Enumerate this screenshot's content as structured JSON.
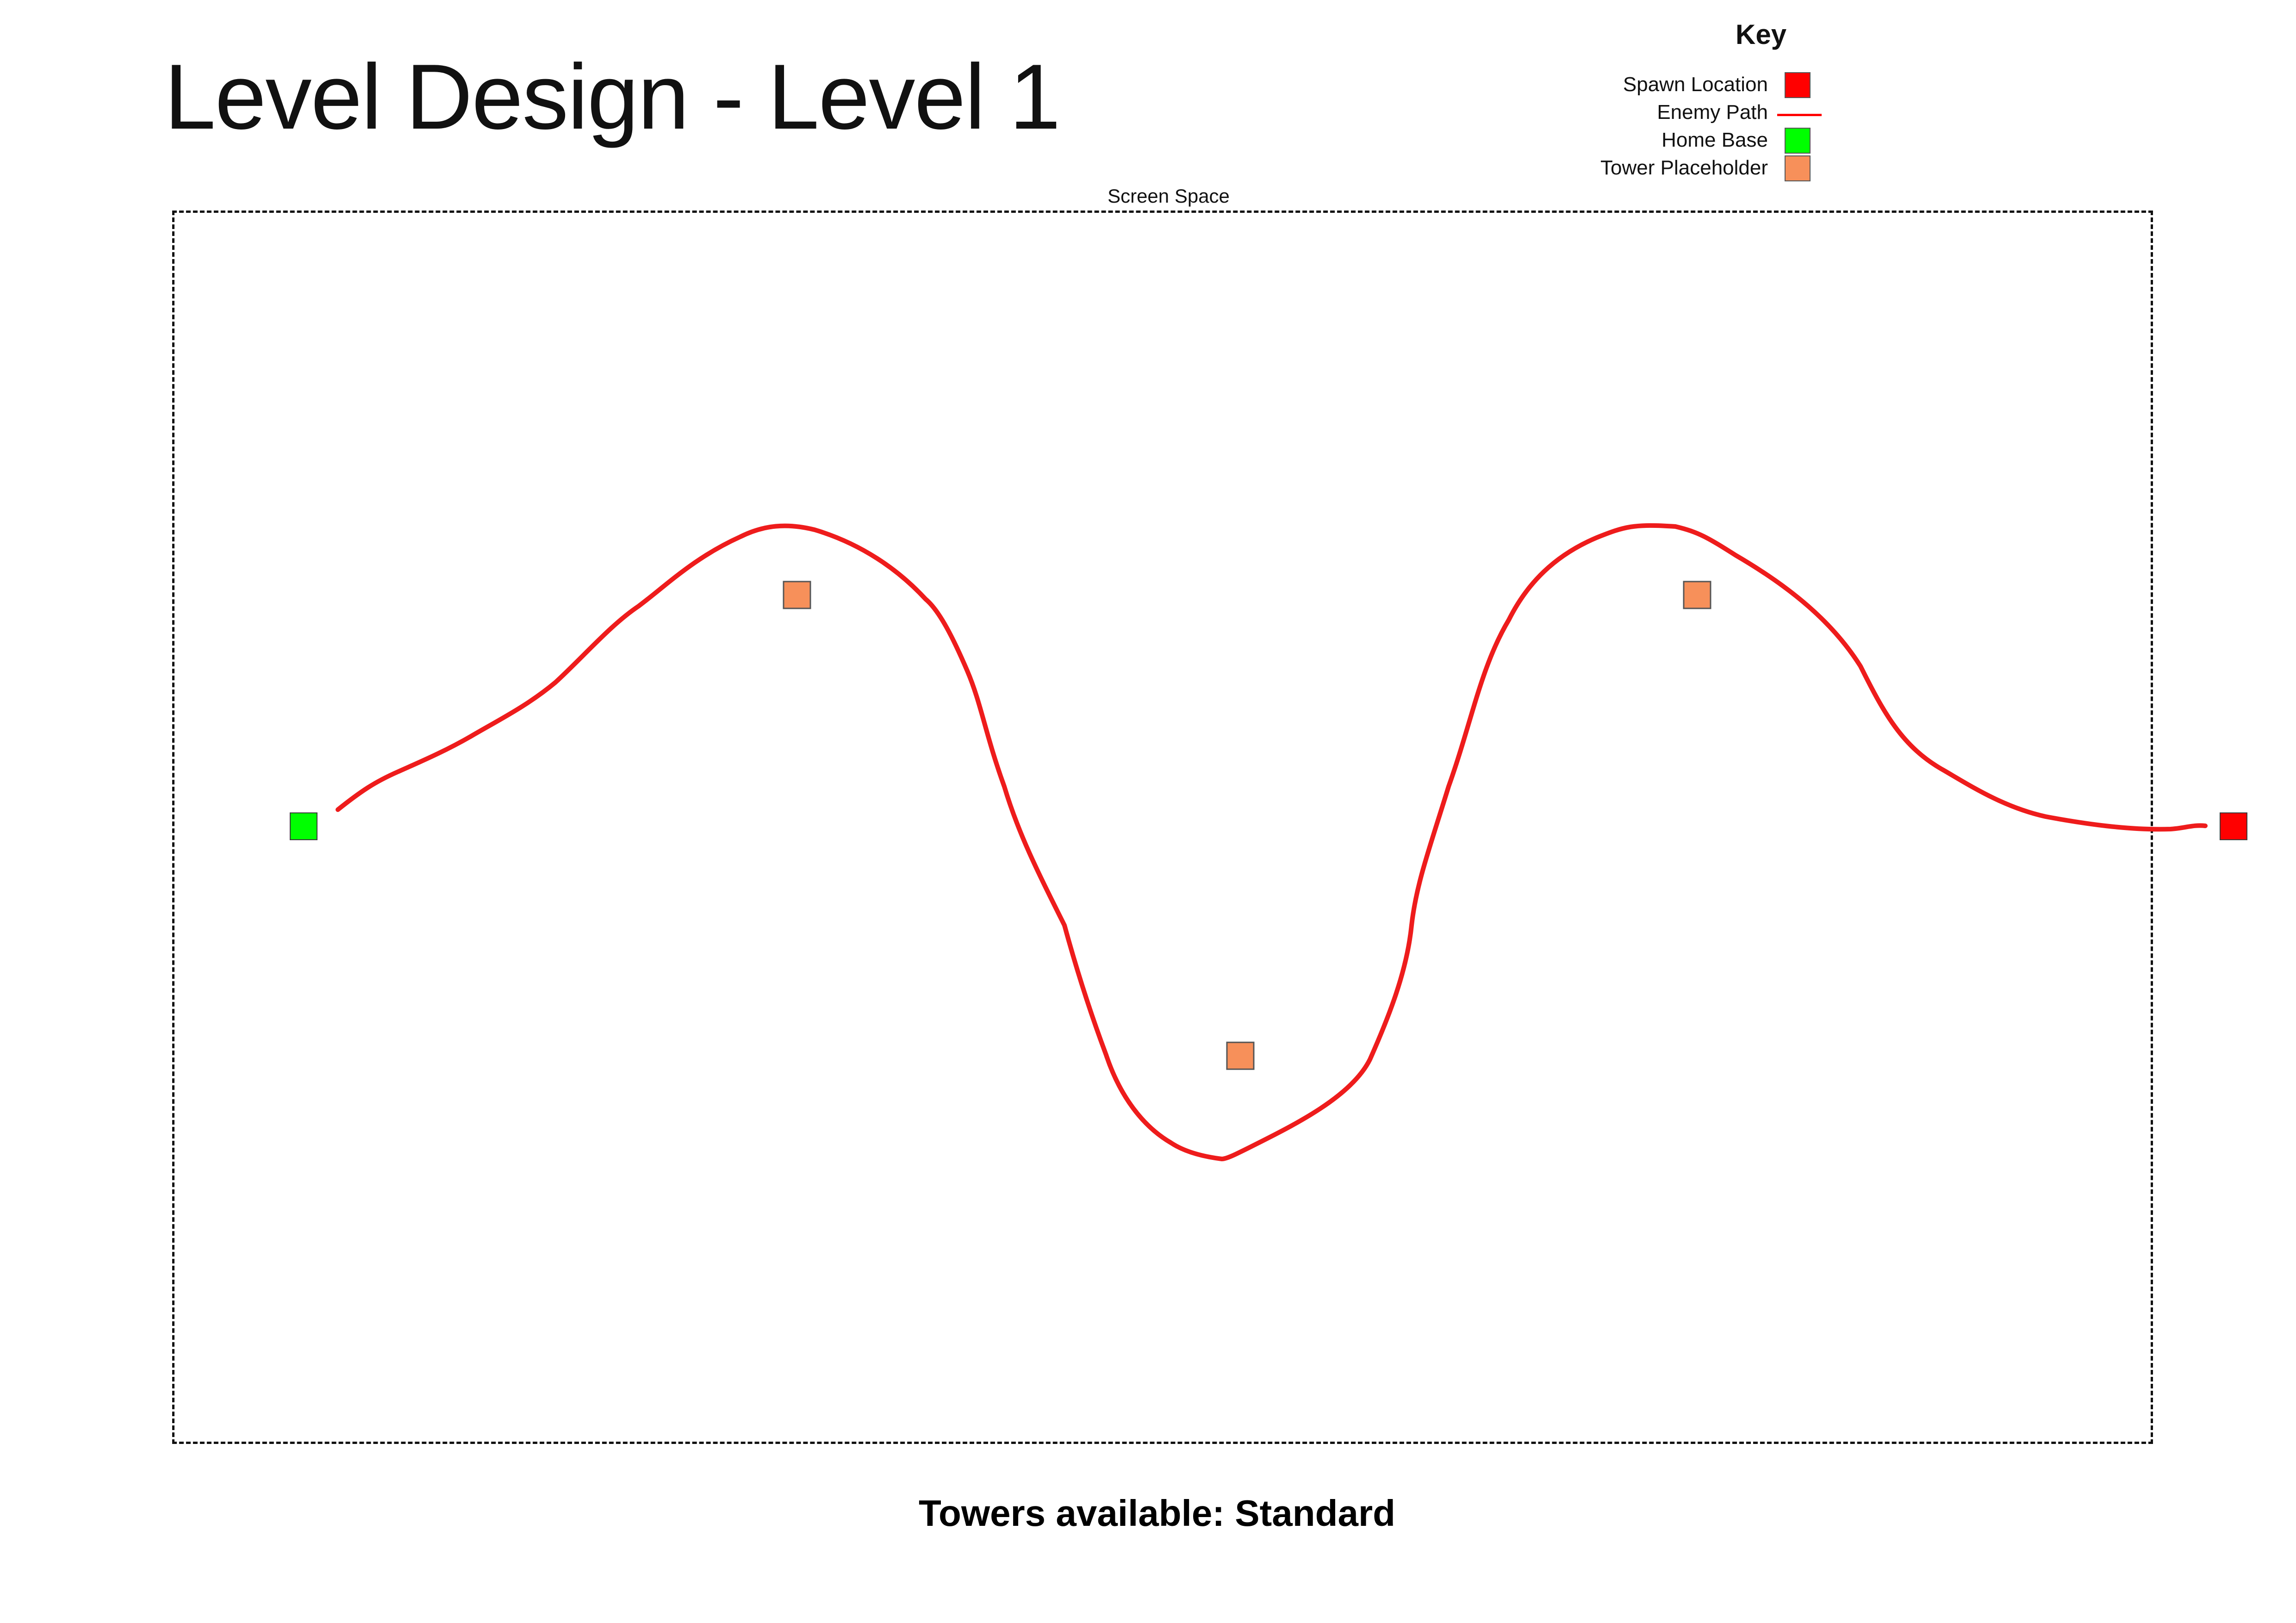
{
  "title": "Level Design - Level 1",
  "key": {
    "heading": "Key",
    "items": [
      {
        "label": "Spawn Location",
        "type": "square",
        "color": "#ff0000"
      },
      {
        "label": "Enemy Path",
        "type": "line",
        "color": "#ff0000"
      },
      {
        "label": "Home Base",
        "type": "square",
        "color": "#00ff00"
      },
      {
        "label": "Tower Placeholder",
        "type": "square",
        "color": "#f7905a"
      }
    ]
  },
  "screen_space_label": "Screen Space",
  "footer": "Towers available: Standard",
  "colors": {
    "spawn": "#ff0000",
    "path": "#ee1c1c",
    "home_base": "#00ff00",
    "tower": "#f7905a"
  }
}
